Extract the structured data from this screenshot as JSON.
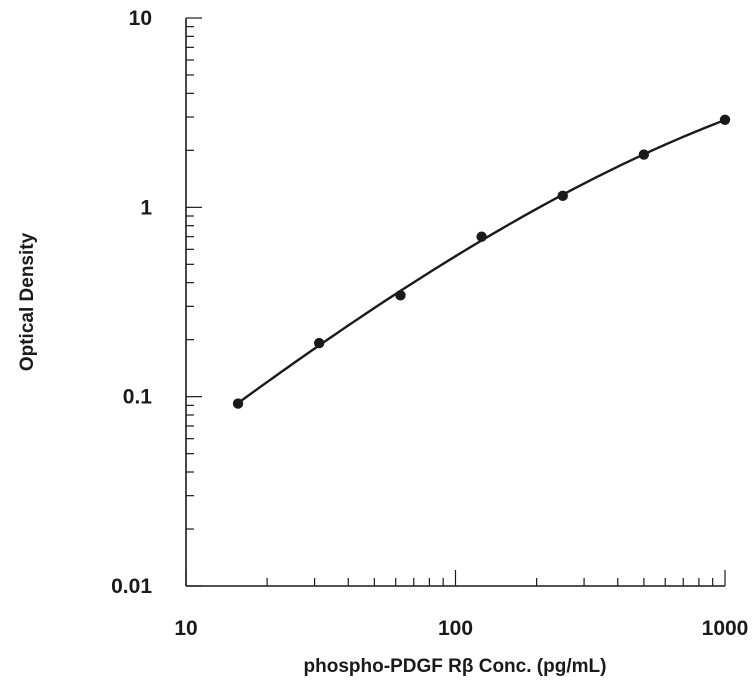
{
  "chart_data": {
    "type": "scatter",
    "title": "",
    "xlabel": "phospho-PDGF Rβ Conc. (pg/mL)",
    "ylabel": "Optical Density",
    "x_scale": "log",
    "y_scale": "log",
    "xlim": [
      10,
      1000
    ],
    "ylim": [
      0.01,
      10
    ],
    "x_tick_labels": [
      "10",
      "100",
      "1000"
    ],
    "y_tick_labels": [
      "0.01",
      "0.1",
      "1",
      "10"
    ],
    "grid": false,
    "legend": "none",
    "series": [
      {
        "x": [
          15.6,
          31.2,
          62.5,
          125,
          250,
          500,
          1000
        ],
        "y": [
          0.092,
          0.192,
          0.343,
          0.7,
          1.15,
          1.9,
          2.9
        ],
        "fit_curve": true
      }
    ],
    "colors": {
      "ink": "#1a1a1a",
      "background": "#ffffff"
    }
  }
}
